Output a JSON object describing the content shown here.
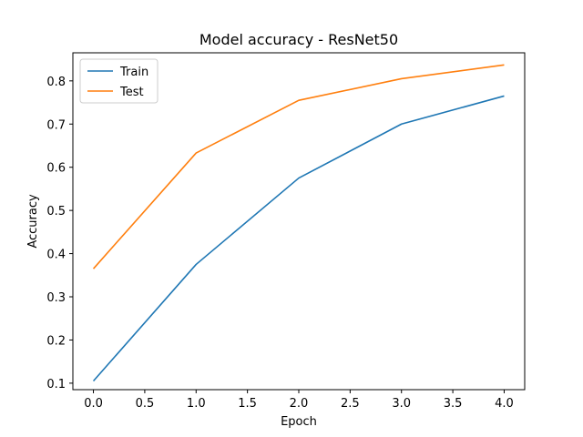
{
  "chart_data": {
    "type": "line",
    "title": "Model accuracy - ResNet50",
    "xlabel": "Epoch",
    "ylabel": "Accuracy",
    "x": [
      0,
      1,
      2,
      3,
      4
    ],
    "xlim": [
      -0.2,
      4.2
    ],
    "ylim": [
      0.085,
      0.865
    ],
    "xticks": [
      0,
      0.5,
      1,
      1.5,
      2,
      2.5,
      3,
      3.5,
      4
    ],
    "xtick_labels": [
      "0.0",
      "0.5",
      "1.0",
      "1.5",
      "2.0",
      "2.5",
      "3.0",
      "3.5",
      "4.0"
    ],
    "yticks": [
      0.1,
      0.2,
      0.3,
      0.4,
      0.5,
      0.6,
      0.7,
      0.8
    ],
    "ytick_labels": [
      "0.1",
      "0.2",
      "0.3",
      "0.4",
      "0.5",
      "0.6",
      "0.7",
      "0.8"
    ],
    "grid": false,
    "legend_position": "top-left",
    "series": [
      {
        "name": "Train",
        "color": "#1f77b4",
        "values": [
          0.105,
          0.375,
          0.575,
          0.7,
          0.765
        ]
      },
      {
        "name": "Test",
        "color": "#ff7f0e",
        "values": [
          0.365,
          0.633,
          0.755,
          0.805,
          0.837
        ]
      }
    ]
  }
}
